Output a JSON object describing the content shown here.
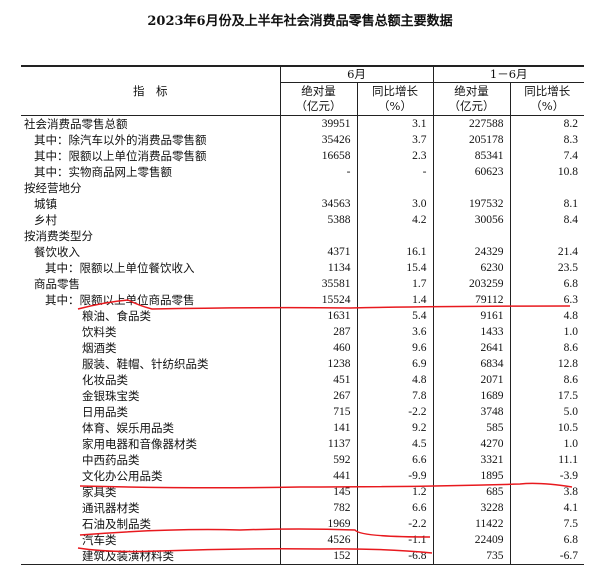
{
  "title": "2023年6月份及上半年社会消费品零售总额主要数据",
  "header": {
    "indicator": "指　标",
    "june": "6月",
    "h1": "1－6月",
    "abs": "绝对量",
    "abs_unit": "（亿元）",
    "yoy": "同比增长",
    "yoy_unit": "（%）"
  },
  "rows": [
    {
      "label": "社会消费品零售总额",
      "level": 0,
      "v": [
        "39951",
        "3.1",
        "227588",
        "8.2"
      ]
    },
    {
      "label": "其中：除汽车以外的消费品零售额",
      "level": 1,
      "v": [
        "35426",
        "3.7",
        "205178",
        "8.3"
      ]
    },
    {
      "label": "其中：限额以上单位消费品零售额",
      "level": 1,
      "v": [
        "16658",
        "2.3",
        "85341",
        "7.4"
      ]
    },
    {
      "label": "其中：实物商品网上零售额",
      "level": 1,
      "v": [
        "-",
        "-",
        "60623",
        "10.8"
      ]
    },
    {
      "label": "按经营地分",
      "level": 0,
      "v": [
        "",
        "",
        "",
        ""
      ]
    },
    {
      "label": "城镇",
      "level": 1,
      "v": [
        "34563",
        "3.0",
        "197532",
        "8.1"
      ]
    },
    {
      "label": "乡村",
      "level": 1,
      "v": [
        "5388",
        "4.2",
        "30056",
        "8.4"
      ]
    },
    {
      "label": "按消费类型分",
      "level": 0,
      "v": [
        "",
        "",
        "",
        ""
      ]
    },
    {
      "label": "餐饮收入",
      "level": 1,
      "v": [
        "4371",
        "16.1",
        "24329",
        "21.4"
      ]
    },
    {
      "label": "其中：限额以上单位餐饮收入",
      "level": 2,
      "v": [
        "1134",
        "15.4",
        "6230",
        "23.5"
      ]
    },
    {
      "label": "商品零售",
      "level": 1,
      "v": [
        "35581",
        "1.7",
        "203259",
        "6.8"
      ]
    },
    {
      "label": "其中：限额以上单位商品零售",
      "level": 2,
      "v": [
        "15524",
        "1.4",
        "79112",
        "6.3"
      ]
    },
    {
      "label": "粮油、食品类",
      "level": 3,
      "v": [
        "1631",
        "5.4",
        "9161",
        "4.8"
      ]
    },
    {
      "label": "饮料类",
      "level": 3,
      "v": [
        "287",
        "3.6",
        "1433",
        "1.0"
      ]
    },
    {
      "label": "烟酒类",
      "level": 3,
      "v": [
        "460",
        "9.6",
        "2641",
        "8.6"
      ]
    },
    {
      "label": "服装、鞋帽、针纺织品类",
      "level": 3,
      "v": [
        "1238",
        "6.9",
        "6834",
        "12.8"
      ]
    },
    {
      "label": "化妆品类",
      "level": 3,
      "v": [
        "451",
        "4.8",
        "2071",
        "8.6"
      ]
    },
    {
      "label": "金银珠宝类",
      "level": 3,
      "v": [
        "267",
        "7.8",
        "1689",
        "17.5"
      ]
    },
    {
      "label": "日用品类",
      "level": 3,
      "v": [
        "715",
        "-2.2",
        "3748",
        "5.0"
      ]
    },
    {
      "label": "体育、娱乐用品类",
      "level": 3,
      "v": [
        "141",
        "9.2",
        "585",
        "10.5"
      ]
    },
    {
      "label": "家用电器和音像器材类",
      "level": 3,
      "v": [
        "1137",
        "4.5",
        "4270",
        "1.0"
      ]
    },
    {
      "label": "中西药品类",
      "level": 3,
      "v": [
        "592",
        "6.6",
        "3321",
        "11.1"
      ]
    },
    {
      "label": "文化办公用品类",
      "level": 3,
      "v": [
        "441",
        "-9.9",
        "1895",
        "-3.9"
      ]
    },
    {
      "label": "家具类",
      "level": 3,
      "v": [
        "145",
        "1.2",
        "685",
        "3.8"
      ]
    },
    {
      "label": "通讯器材类",
      "level": 3,
      "v": [
        "782",
        "6.6",
        "3228",
        "4.1"
      ]
    },
    {
      "label": "石油及制品类",
      "level": 3,
      "v": [
        "1969",
        "-2.2",
        "11422",
        "7.5"
      ]
    },
    {
      "label": "汽车类",
      "level": 3,
      "v": [
        "4526",
        "-1.1",
        "22409",
        "6.8"
      ]
    },
    {
      "label": "建筑及装潢材料类",
      "level": 3,
      "v": [
        "152",
        "-6.8",
        "735",
        "-6.7"
      ]
    }
  ],
  "annotation_color": "#e8191e"
}
